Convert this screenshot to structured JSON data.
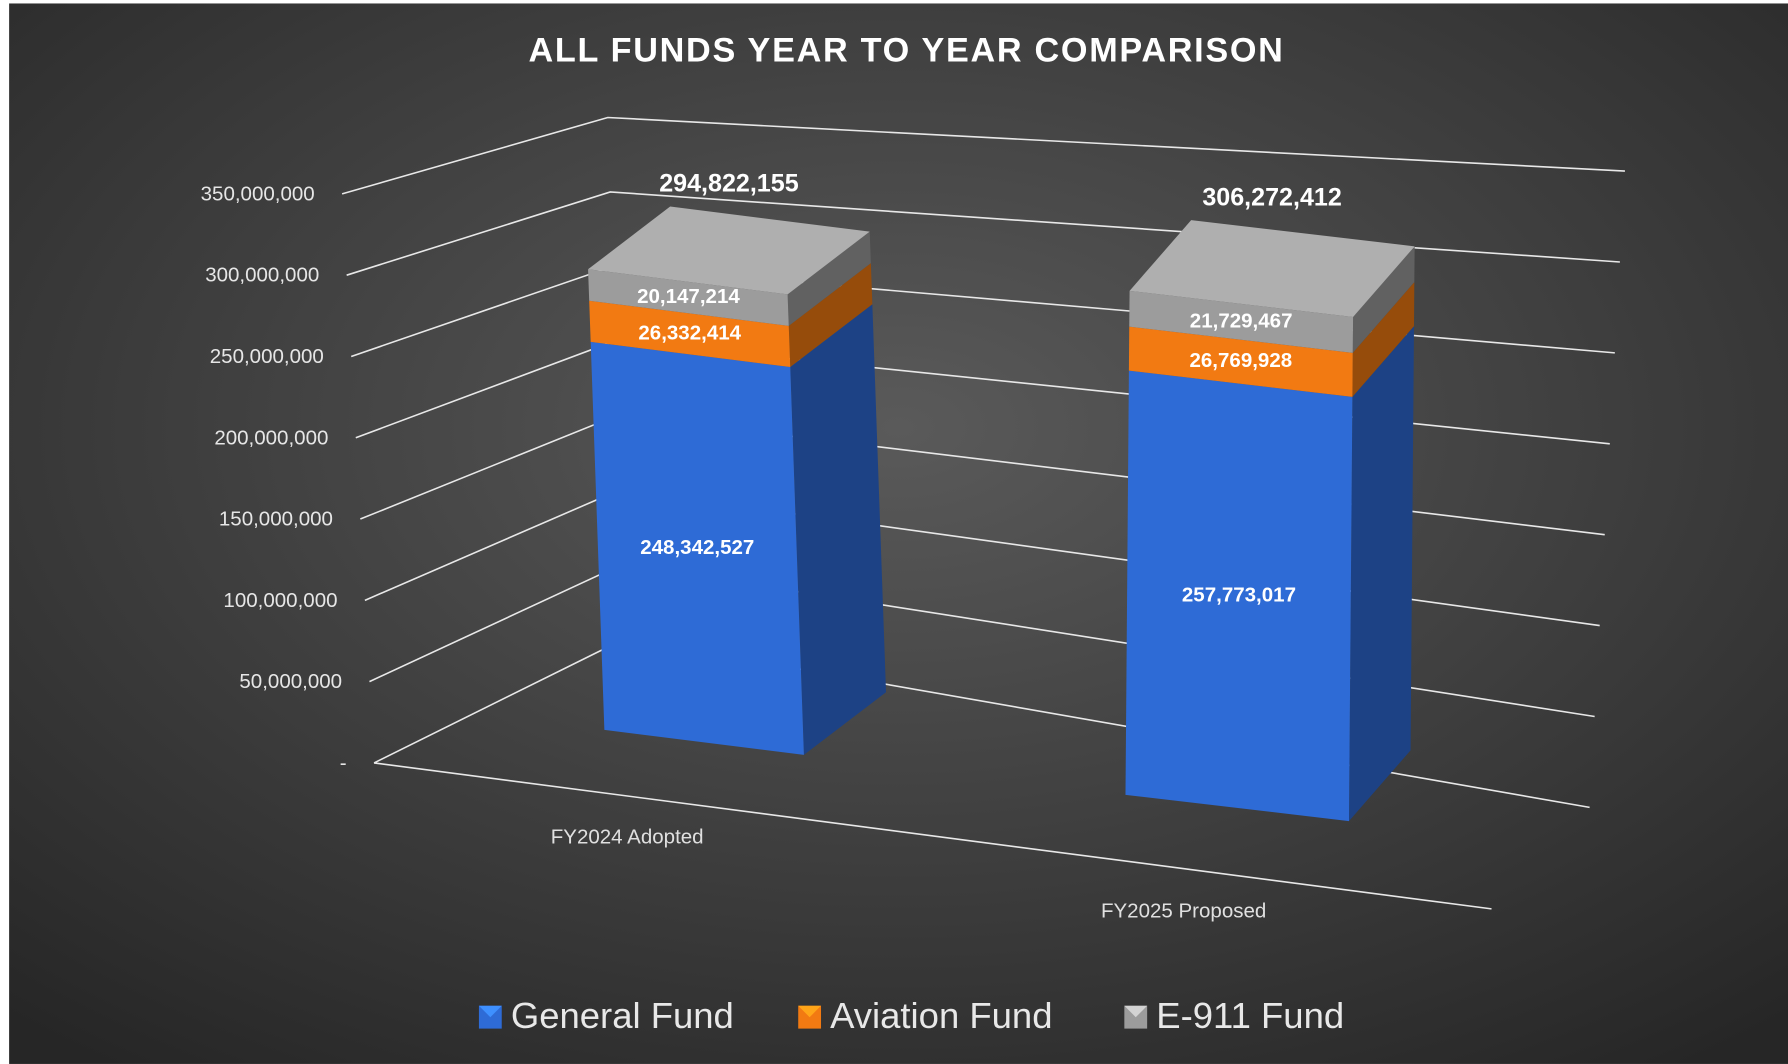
{
  "chart_data": {
    "type": "bar",
    "stacked": true,
    "three_d": true,
    "title": "ALL FUNDS YEAR TO YEAR COMPARISON",
    "categories": [
      "FY2024 Adopted",
      "FY2025 Proposed"
    ],
    "series": [
      {
        "name": "General Fund",
        "color": "#2e6bd6",
        "values": [
          248342527,
          257773017
        ],
        "value_labels": [
          "248,342,527",
          "257,773,017"
        ]
      },
      {
        "name": "Aviation Fund",
        "color": "#f27a12",
        "values": [
          26332414,
          26769928
        ],
        "value_labels": [
          "26,332,414",
          "26,769,928"
        ]
      },
      {
        "name": "E-911 Fund",
        "color": "#9c9c9c",
        "values": [
          20147214,
          21729467
        ],
        "value_labels": [
          "20,147,214",
          "21,729,467"
        ]
      }
    ],
    "totals": [
      294822155,
      306272412
    ],
    "total_labels": [
      "294,822,155",
      "306,272,412"
    ],
    "ylim": [
      0,
      350000000
    ],
    "yticks": [
      {
        "value": 0,
        "label": "-"
      },
      {
        "value": 50000000,
        "label": "50,000,000"
      },
      {
        "value": 100000000,
        "label": "100,000,000"
      },
      {
        "value": 150000000,
        "label": "150,000,000"
      },
      {
        "value": 200000000,
        "label": "200,000,000"
      },
      {
        "value": 250000000,
        "label": "250,000,000"
      },
      {
        "value": 300000000,
        "label": "300,000,000"
      },
      {
        "value": 350000000,
        "label": "350,000,000"
      }
    ],
    "grid": true,
    "legend": "bottom"
  }
}
